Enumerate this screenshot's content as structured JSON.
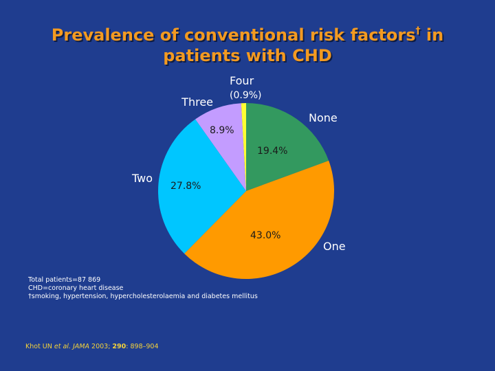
{
  "slide": {
    "title_part1": "Prevalence of conventional risk factors",
    "title_dagger": "†",
    "title_part2": " in",
    "title_line2": "patients with CHD",
    "footnotes": [
      "Total patients=87 869",
      "CHD=coronary heart disease",
      "†smoking, hypertension, hypercholesterolaemia and diabetes mellitus"
    ],
    "citation": {
      "authors": "Khot UN ",
      "etal": "et al.",
      "journal": "JAMA",
      "year": " 2003; ",
      "volume": "290",
      "pages": ": 898–904"
    }
  },
  "chart_data": {
    "type": "pie",
    "title": "",
    "start_angle_deg": 0,
    "direction": "clockwise",
    "slices": [
      {
        "label": "None",
        "value": 19.4,
        "display": "19.4%",
        "color": "#33995f"
      },
      {
        "label": "One",
        "value": 43.0,
        "display": "43.0%",
        "color": "#ff9a00"
      },
      {
        "label": "Two",
        "value": 27.8,
        "display": "27.8%",
        "color": "#00c6ff"
      },
      {
        "label": "Three",
        "value": 8.9,
        "display": "8.9%",
        "color": "#c39cff"
      },
      {
        "label": "Four",
        "value": 0.9,
        "display": "(0.9%)",
        "color": "#ffff33"
      }
    ]
  }
}
